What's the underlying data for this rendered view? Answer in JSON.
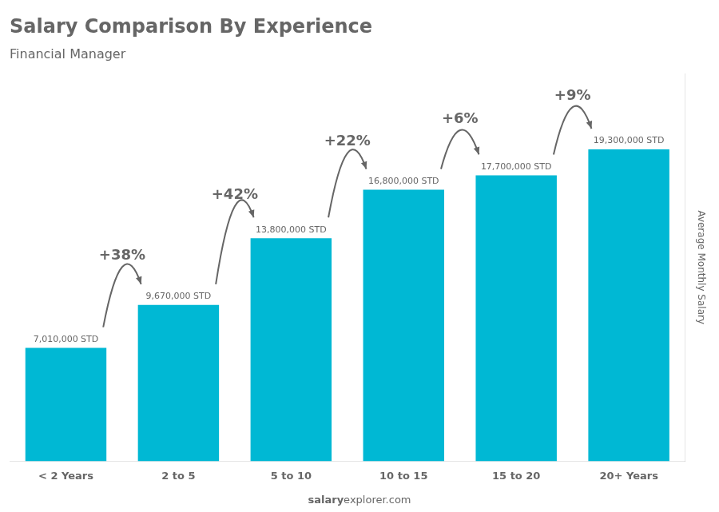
{
  "chart_data": {
    "type": "bar",
    "title": "Salary Comparison By Experience",
    "subtitle": "Financial Manager",
    "ylabel": "Average Monthly Salary",
    "watermark": [
      "salary",
      "explorer.com"
    ],
    "categories": [
      "< 2 Years",
      "2 to 5",
      "5 to 10",
      "10 to 15",
      "15 to 20",
      "20+ Years"
    ],
    "values": [
      7010000,
      9670000,
      13800000,
      16800000,
      17700000,
      19300000
    ],
    "value_labels": [
      "7,010,000 STD",
      "9,670,000 STD",
      "13,800,000 STD",
      "16,800,000 STD",
      "17,700,000 STD",
      "19,300,000 STD"
    ],
    "data_labels": true,
    "color": "#00b8d4",
    "ylim": [
      0,
      24000000
    ],
    "tick_labels": "x",
    "grid": false,
    "annotations": [
      {
        "text": "+38%",
        "from": "< 2 Years",
        "to": "2 to 5"
      },
      {
        "text": "+42%",
        "from": "2 to 5",
        "to": "5 to 10"
      },
      {
        "text": "+22%",
        "from": "5 to 10",
        "to": "10 to 15"
      },
      {
        "text": "+6%",
        "from": "10 to 15",
        "to": "15 to 20"
      },
      {
        "text": "+9%",
        "from": "15 to 20",
        "to": "20+ Years"
      }
    ]
  }
}
